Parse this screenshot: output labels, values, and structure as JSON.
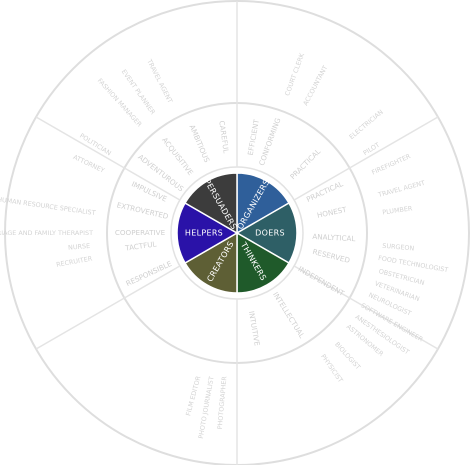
{
  "wheel": {
    "sectors": [
      {
        "name": "ORGANIZERS",
        "color": "#2f5f9a",
        "start": -90,
        "end": -30
      },
      {
        "name": "DOERS",
        "color": "#2e5f66",
        "start": -30,
        "end": 30
      },
      {
        "name": "THINKERS",
        "color": "#1f5a2a",
        "start": 30,
        "end": 90
      },
      {
        "name": "CREATORS",
        "color": "#5e5f35",
        "start": 90,
        "end": 150
      },
      {
        "name": "HELPERS",
        "color": "#2a12a8",
        "start": 150,
        "end": 210
      },
      {
        "name": "PERSUADERS",
        "color": "#3c3c3c",
        "start": 210,
        "end": 270
      }
    ],
    "traits": [
      {
        "text": "EFFICIENT",
        "angle": -80
      },
      {
        "text": "CONFORMING",
        "angle": -70
      },
      {
        "text": "PRACTICAL",
        "angle": -45
      },
      {
        "text": "PRACTICAL",
        "angle": -25
      },
      {
        "text": "HONEST",
        "angle": -12
      },
      {
        "text": "ANALYTICAL",
        "angle": 3
      },
      {
        "text": "RESERVED",
        "angle": 14
      },
      {
        "text": "INDEPENDENT",
        "angle": 30
      },
      {
        "text": "INTELLECTUAL",
        "angle": 58
      },
      {
        "text": "INTUITIVE",
        "angle": 80
      },
      {
        "text": "RESPONSIBLE",
        "angle": 155
      },
      {
        "text": "TACTFUL",
        "angle": 172
      },
      {
        "text": "COOPERATIVE",
        "angle": 180
      },
      {
        "text": "EXTROVERTED",
        "angle": 193
      },
      {
        "text": "IMPULSIVE",
        "angle": 205
      },
      {
        "text": "ADVENTUROUS",
        "angle": 218
      },
      {
        "text": "ACQUISITIVE",
        "angle": 232
      },
      {
        "text": "AMBITIOUS",
        "angle": 247
      },
      {
        "text": "CAREFUL",
        "angle": 262
      }
    ],
    "careers": [
      {
        "text": "TRAVEL AGENT",
        "angle": -15
      },
      {
        "text": "PLUMBER",
        "angle": -8
      },
      {
        "text": "FIREFIGHTER",
        "angle": -24
      },
      {
        "text": "PILOT",
        "angle": -32
      },
      {
        "text": "SURGEON",
        "angle": 5
      },
      {
        "text": "FOOD TECHNOLOGIST",
        "angle": 10
      },
      {
        "text": "OBSTETRICIAN",
        "angle": 15
      },
      {
        "text": "VETERINARIAN",
        "angle": 20
      },
      {
        "text": "NEUROLOGIST",
        "angle": 25
      },
      {
        "text": "SOFTWARE ENGINEER",
        "angle": 30
      },
      {
        "text": "ANESTHESIOLOGIST",
        "angle": 35
      },
      {
        "text": "ASTRONOMER",
        "angle": 40
      },
      {
        "text": "BIOLOGIST",
        "angle": 48
      },
      {
        "text": "PHYSICIST",
        "angle": 55
      },
      {
        "text": "PHOTOGRAPHER",
        "angle": 95
      },
      {
        "text": "FILM EDITOR",
        "angle": 105
      },
      {
        "text": "PHOTO JOURNALIST",
        "angle": 100
      },
      {
        "text": "RECRUITER",
        "angle": 170
      },
      {
        "text": "NURSE",
        "angle": 175
      },
      {
        "text": "MARRIAGE AND FAMILY THERAPIST",
        "angle": 180
      },
      {
        "text": "HUMAN RESOURCE SPECIALIST",
        "angle": 188
      },
      {
        "text": "ATTORNEY",
        "angle": 205
      },
      {
        "text": "POLITICIAN",
        "angle": 212
      },
      {
        "text": "FASHION MANAGER",
        "angle": 228
      },
      {
        "text": "EVENT PLANNER",
        "angle": 235
      },
      {
        "text": "TRAVEL AGENT",
        "angle": 243
      },
      {
        "text": "COURT CLERK",
        "angle": -70
      },
      {
        "text": "ACCOUNTANT",
        "angle": -62
      },
      {
        "text": "ELECTRICIAN",
        "angle": -40
      }
    ]
  }
}
